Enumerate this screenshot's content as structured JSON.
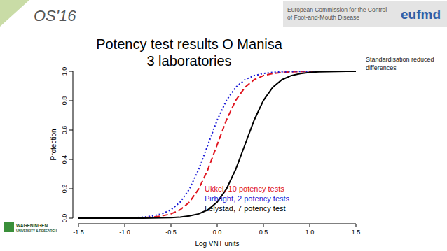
{
  "header": {
    "event": "OS'16",
    "organisation": "European Commission for the Control of Foot-and-Mouth Disease",
    "logo": "eufmd"
  },
  "footer": {
    "logo": "WAGENINGEN UNIVERSITY & RESEARCH"
  },
  "chart_data": {
    "type": "line",
    "title": "Potency test results O Manisa",
    "subtitle": "3 laboratories",
    "x_label": "Log VNT units",
    "y_label": "Protection",
    "annotation": "Standardisation reduced differences",
    "x": [
      -1.5,
      -1.4,
      -1.3,
      -1.2,
      -1.1,
      -1.0,
      -0.9,
      -0.8,
      -0.7,
      -0.6,
      -0.5,
      -0.4,
      -0.3,
      -0.2,
      -0.1,
      0.0,
      0.1,
      0.2,
      0.3,
      0.4,
      0.5,
      0.6,
      0.7,
      0.8,
      0.9,
      1.0,
      1.1,
      1.2,
      1.3,
      1.4,
      1.5
    ],
    "series": [
      {
        "name": "Ukkel, 10 potency tests",
        "color": "#e0141e",
        "line_style": "dashed",
        "values": [
          0,
          0,
          0,
          0,
          0,
          0.001,
          0.002,
          0.004,
          0.007,
          0.015,
          0.029,
          0.057,
          0.109,
          0.198,
          0.332,
          0.5,
          0.668,
          0.802,
          0.891,
          0.943,
          0.971,
          0.985,
          0.993,
          0.996,
          0.998,
          0.999,
          1,
          1,
          1,
          1,
          1
        ]
      },
      {
        "name": "Pirbright, 2 potency tests",
        "color": "#1c1cd6",
        "line_style": "dotted",
        "values": [
          0,
          0,
          0,
          0,
          0.001,
          0.002,
          0.004,
          0.007,
          0.015,
          0.029,
          0.057,
          0.109,
          0.198,
          0.332,
          0.5,
          0.668,
          0.802,
          0.891,
          0.943,
          0.971,
          0.985,
          0.993,
          0.996,
          0.998,
          0.999,
          1,
          1,
          1,
          1,
          1,
          1
        ]
      },
      {
        "name": "Lelystad, 7 potency test",
        "color": "#000000",
        "line_style": "solid",
        "values": [
          0,
          0,
          0,
          0,
          0,
          0,
          0,
          0,
          0.001,
          0.002,
          0.004,
          0.007,
          0.015,
          0.029,
          0.057,
          0.109,
          0.198,
          0.332,
          0.5,
          0.668,
          0.802,
          0.891,
          0.943,
          0.971,
          0.985,
          0.993,
          0.996,
          0.998,
          0.999,
          1,
          1
        ]
      }
    ],
    "xlim": [
      -1.5,
      1.5
    ],
    "ylim": [
      0,
      1
    ],
    "xticks": [
      -1.5,
      {
        "value": -1.0,
        "label": "-1.0"
      },
      -0.5,
      {
        "value": 0,
        "label": "0.0"
      },
      0.5,
      {
        "value": 1.0,
        "label": "1.0"
      },
      1.5
    ],
    "yticks": [
      {
        "value": 0,
        "label": "0.0"
      },
      {
        "value": 0.2,
        "label": "0.2"
      },
      {
        "value": 0.4,
        "label": "0.4"
      },
      {
        "value": 0.6,
        "label": "0.6"
      },
      {
        "value": 0.8,
        "label": "0.8"
      },
      {
        "value": 1.0,
        "label": "1.0"
      }
    ],
    "legend": "lower right",
    "grid": false
  }
}
